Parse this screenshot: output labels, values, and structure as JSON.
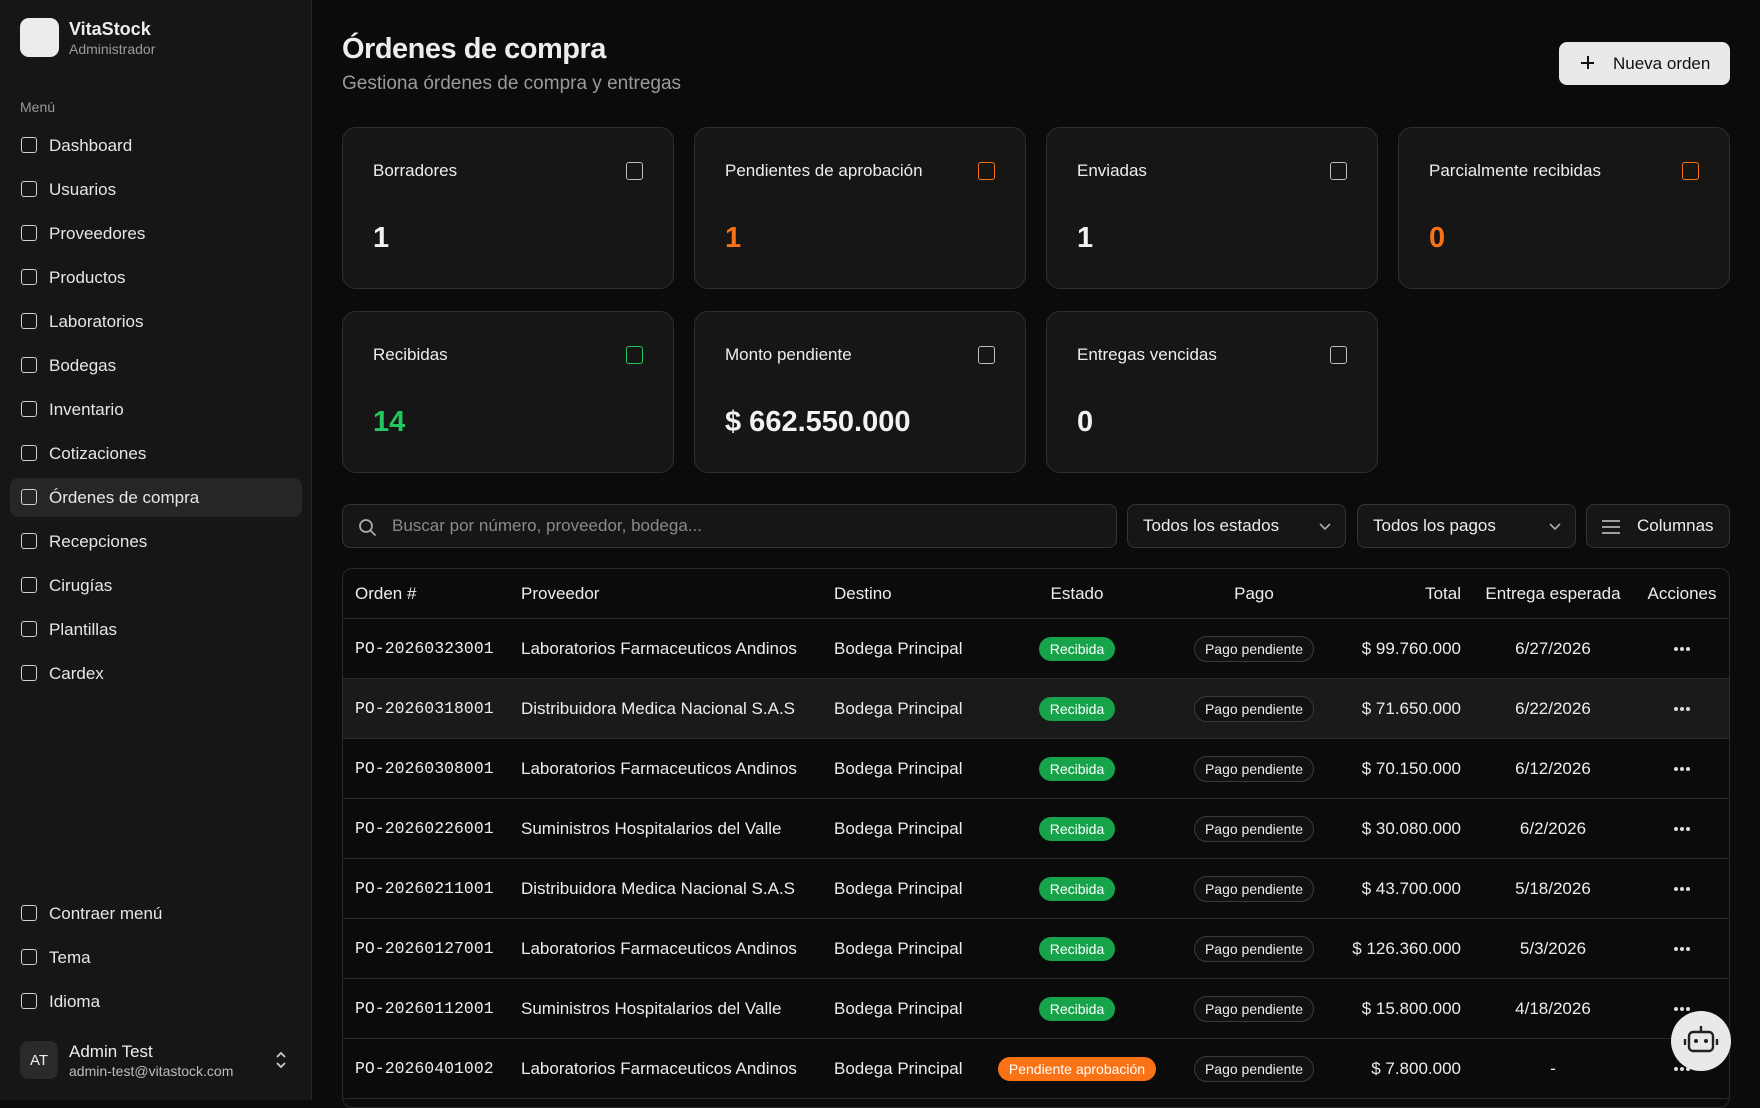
{
  "sidebar": {
    "brand": "VitaStock",
    "role": "Administrador",
    "menu_label": "Menú",
    "menu": [
      "Dashboard",
      "Usuarios",
      "Proveedores",
      "Productos",
      "Laboratorios",
      "Bodegas",
      "Inventario",
      "Cotizaciones",
      "Órdenes de compra",
      "Recepciones",
      "Cirugías",
      "Plantillas",
      "Cardex"
    ],
    "footer_menu": [
      "Contraer menú",
      "Tema",
      "Idioma"
    ],
    "user": {
      "initials": "AT",
      "name": "Admin Test",
      "email": "admin-test@vitastock.com"
    }
  },
  "header": {
    "title": "Órdenes de compra",
    "subtitle": "Gestiona órdenes de compra y entregas",
    "button": "Nueva orden"
  },
  "stats": [
    {
      "label": "Borradores",
      "value": 1,
      "color": "#f2f2f2"
    },
    {
      "label": "Pendientes de aprobación",
      "value": 1,
      "color": "#f97316"
    },
    {
      "label": "Enviadas",
      "value": 1,
      "color": "#f2f2f2"
    },
    {
      "label": "Parcialmente recibidas",
      "value": 0,
      "color": "#f97316"
    },
    {
      "label": "Recibidas",
      "value": 14,
      "color": "#22c55e"
    },
    {
      "label": "Monto pendiente",
      "value": "$ 662.550.000",
      "color": "#f2f2f2"
    },
    {
      "label": "Entregas vencidas",
      "value": 0,
      "color": "#f2f2f2"
    }
  ],
  "filters": {
    "search_placeholder": "Buscar por número, proveedor, bodega...",
    "status": "Todos los estados",
    "payment": "Todos los pagos",
    "columns": "Columnas"
  },
  "table": {
    "headers": [
      "Orden #",
      "Proveedor",
      "Destino",
      "Estado",
      "Pago",
      "Total",
      "Entrega esperada",
      "Acciones"
    ],
    "rows": [
      {
        "order": "PO-20260323001",
        "supplier": "Laboratorios Farmaceuticos Andinos",
        "destination": "Bodega Principal",
        "status": "Recibida",
        "status_color": "#16a34a",
        "payment": "Pago pendiente",
        "total": "$ 99.760.000",
        "due": "6/27/2026"
      },
      {
        "order": "PO-20260318001",
        "supplier": "Distribuidora Medica Nacional S.A.S",
        "destination": "Bodega Principal",
        "status": "Recibida",
        "status_color": "#16a34a",
        "payment": "Pago pendiente",
        "total": "$ 71.650.000",
        "due": "6/22/2026"
      },
      {
        "order": "PO-20260308001",
        "supplier": "Laboratorios Farmaceuticos Andinos",
        "destination": "Bodega Principal",
        "status": "Recibida",
        "status_color": "#16a34a",
        "payment": "Pago pendiente",
        "total": "$ 70.150.000",
        "due": "6/12/2026"
      },
      {
        "order": "PO-20260226001",
        "supplier": "Suministros Hospitalarios del Valle",
        "destination": "Bodega Principal",
        "status": "Recibida",
        "status_color": "#16a34a",
        "payment": "Pago pendiente",
        "total": "$ 30.080.000",
        "due": "6/2/2026"
      },
      {
        "order": "PO-20260211001",
        "supplier": "Distribuidora Medica Nacional S.A.S",
        "destination": "Bodega Principal",
        "status": "Recibida",
        "status_color": "#16a34a",
        "payment": "Pago pendiente",
        "total": "$ 43.700.000",
        "due": "5/18/2026"
      },
      {
        "order": "PO-20260127001",
        "supplier": "Laboratorios Farmaceuticos Andinos",
        "destination": "Bodega Principal",
        "status": "Recibida",
        "status_color": "#16a34a",
        "payment": "Pago pendiente",
        "total": "$ 126.360.000",
        "due": "5/3/2026"
      },
      {
        "order": "PO-20260112001",
        "supplier": "Suministros Hospitalarios del Valle",
        "destination": "Bodega Principal",
        "status": "Recibida",
        "status_color": "#16a34a",
        "payment": "Pago pendiente",
        "total": "$ 15.800.000",
        "due": "4/18/2026"
      },
      {
        "order": "PO-20260401002",
        "supplier": "Laboratorios Farmaceuticos Andinos",
        "destination": "Bodega Principal",
        "status": "Pendiente aprobación",
        "status_color": "#f97316",
        "payment": "Pago pendiente",
        "total": "$ 7.800.000",
        "due": "-"
      }
    ]
  }
}
